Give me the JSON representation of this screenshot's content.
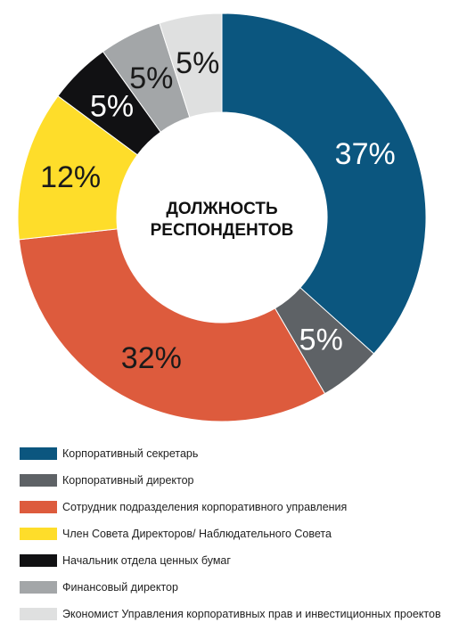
{
  "chart_data": {
    "type": "pie",
    "title": "ДОЛЖНОСТЬ РЕСПОНДЕНТОВ",
    "title_lines": [
      "ДОЛЖНОСТЬ",
      "РЕСПОНДЕНТОВ"
    ],
    "start_angle_deg": 0,
    "direction": "clockwise",
    "legend_position": "bottom",
    "slices": [
      {
        "name": "Корпоративный секретарь",
        "value": 37,
        "label": "37%",
        "color": "#0b567f",
        "label_color": "#ffffff"
      },
      {
        "name": "Корпоративный директор",
        "value": 5,
        "label": "5%",
        "color": "#5e6266",
        "label_color": "#ffffff"
      },
      {
        "name": "Сотрудник подразделения корпоративного управления",
        "value": 32,
        "label": "32%",
        "color": "#dd5b3d",
        "label_color": "#1a1a1a"
      },
      {
        "name": "Член Совета Директоров/ Наблюдательного Совета",
        "value": 12,
        "label": "12%",
        "color": "#fedd2a",
        "label_color": "#1a1a1a"
      },
      {
        "name": "Начальник отдела ценных бумаг",
        "value": 5,
        "label": "5%",
        "color": "#111113",
        "label_color": "#ffffff"
      },
      {
        "name": "Финансовый директор",
        "value": 5,
        "label": "5%",
        "color": "#a3a6a8",
        "label_color": "#1a1a1a"
      },
      {
        "name": "Экономист Управления корпоративных прав и инвестиционных проектов",
        "value": 5,
        "label": "5%",
        "color": "#dfe0e0",
        "label_color": "#1a1a1a"
      }
    ]
  }
}
